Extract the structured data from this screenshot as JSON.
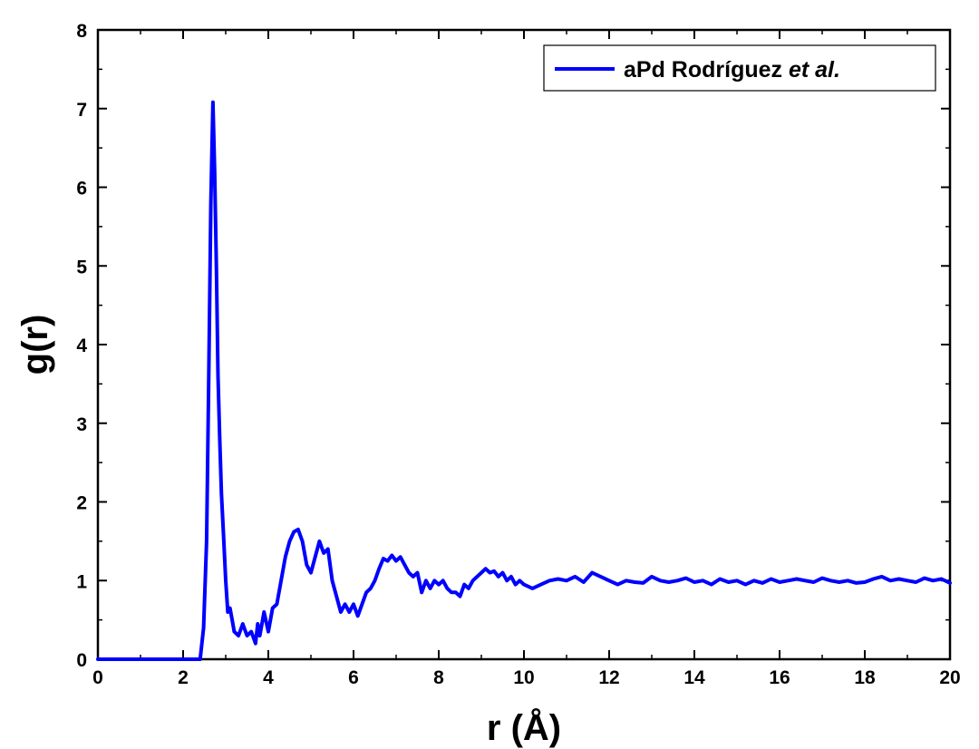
{
  "chart_data": {
    "type": "line",
    "title": "",
    "xlabel": "r (Å)",
    "ylabel": "g(r)",
    "xlim": [
      0,
      20
    ],
    "ylim": [
      0,
      8
    ],
    "x_ticks": [
      "0",
      "2",
      "4",
      "6",
      "8",
      "10",
      "12",
      "14",
      "16",
      "18",
      "20"
    ],
    "y_ticks": [
      "0",
      "1",
      "2",
      "3",
      "4",
      "5",
      "6",
      "7",
      "8"
    ],
    "grid": false,
    "legend": {
      "placement": "top-right",
      "entries": [
        {
          "label_main": "aPd Rodríguez ",
          "label_italic": "et al."
        }
      ]
    },
    "series": [
      {
        "name": "aPd Rodríguez et al.",
        "color": "#0000ff",
        "x": [
          0,
          0.5,
          1.0,
          1.5,
          2.0,
          2.4,
          2.48,
          2.55,
          2.6,
          2.65,
          2.7,
          2.74,
          2.78,
          2.82,
          2.86,
          2.9,
          2.95,
          3.0,
          3.05,
          3.1,
          3.15,
          3.2,
          3.3,
          3.4,
          3.5,
          3.6,
          3.7,
          3.75,
          3.8,
          3.9,
          4.0,
          4.1,
          4.2,
          4.3,
          4.4,
          4.5,
          4.6,
          4.7,
          4.8,
          4.9,
          5.0,
          5.1,
          5.2,
          5.3,
          5.4,
          5.5,
          5.6,
          5.7,
          5.8,
          5.9,
          6.0,
          6.1,
          6.2,
          6.3,
          6.4,
          6.5,
          6.6,
          6.7,
          6.8,
          6.9,
          7.0,
          7.1,
          7.2,
          7.3,
          7.4,
          7.5,
          7.6,
          7.7,
          7.8,
          7.9,
          8.0,
          8.1,
          8.2,
          8.3,
          8.4,
          8.5,
          8.6,
          8.7,
          8.8,
          8.9,
          9.0,
          9.1,
          9.2,
          9.3,
          9.4,
          9.5,
          9.6,
          9.7,
          9.8,
          9.9,
          10.0,
          10.2,
          10.4,
          10.6,
          10.8,
          11.0,
          11.2,
          11.4,
          11.6,
          11.8,
          12.0,
          12.2,
          12.4,
          12.6,
          12.8,
          13.0,
          13.2,
          13.4,
          13.6,
          13.8,
          14.0,
          14.2,
          14.4,
          14.6,
          14.8,
          15.0,
          15.2,
          15.4,
          15.6,
          15.8,
          16.0,
          16.2,
          16.4,
          16.6,
          16.8,
          17.0,
          17.2,
          17.4,
          17.6,
          17.8,
          18.0,
          18.2,
          18.4,
          18.6,
          18.8,
          19.0,
          19.2,
          19.4,
          19.6,
          19.8,
          20.0
        ],
        "y": [
          0,
          0,
          0,
          0,
          0,
          0,
          0.4,
          1.5,
          3.5,
          5.8,
          7.08,
          6.2,
          5.0,
          3.6,
          2.8,
          2.1,
          1.55,
          1.0,
          0.6,
          0.65,
          0.5,
          0.35,
          0.3,
          0.45,
          0.3,
          0.35,
          0.2,
          0.45,
          0.3,
          0.6,
          0.35,
          0.65,
          0.7,
          1.0,
          1.3,
          1.5,
          1.62,
          1.65,
          1.5,
          1.2,
          1.1,
          1.3,
          1.5,
          1.35,
          1.4,
          1.0,
          0.8,
          0.6,
          0.7,
          0.6,
          0.7,
          0.55,
          0.7,
          0.85,
          0.9,
          1.0,
          1.15,
          1.28,
          1.25,
          1.32,
          1.25,
          1.3,
          1.2,
          1.1,
          1.05,
          1.1,
          0.85,
          1.0,
          0.9,
          1.0,
          0.95,
          1.0,
          0.9,
          0.85,
          0.85,
          0.8,
          0.95,
          0.9,
          1.0,
          1.05,
          1.1,
          1.15,
          1.1,
          1.12,
          1.05,
          1.1,
          1.0,
          1.05,
          0.95,
          1.0,
          0.95,
          0.9,
          0.95,
          1.0,
          1.02,
          1.0,
          1.05,
          0.98,
          1.1,
          1.05,
          1.0,
          0.95,
          1.0,
          0.98,
          0.97,
          1.05,
          1.0,
          0.98,
          1.0,
          1.03,
          0.98,
          1.0,
          0.95,
          1.02,
          0.98,
          1.0,
          0.95,
          1.0,
          0.97,
          1.02,
          0.98,
          1.0,
          1.02,
          1.0,
          0.98,
          1.03,
          1.0,
          0.98,
          1.0,
          0.97,
          0.98,
          1.02,
          1.05,
          1.0,
          1.02,
          1.0,
          0.98,
          1.03,
          1.0,
          1.02,
          0.97
        ]
      }
    ]
  }
}
